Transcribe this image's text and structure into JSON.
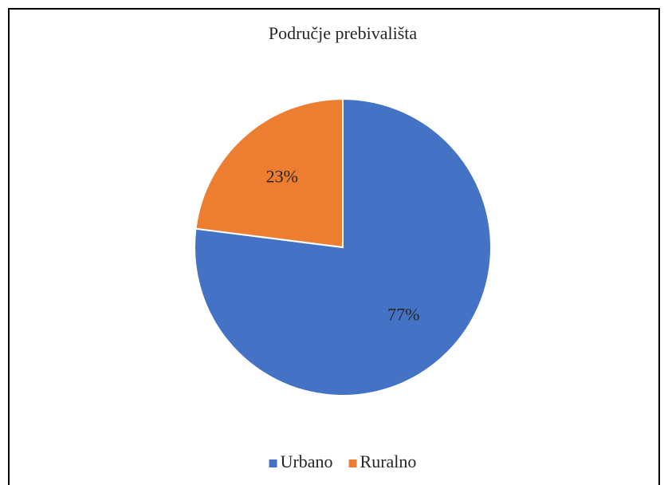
{
  "chart_data": {
    "type": "pie",
    "title": "Područje prebivališta",
    "categories": [
      "Urbano",
      "Ruralno"
    ],
    "values": [
      77,
      23
    ],
    "value_labels": [
      "77%",
      "23%"
    ],
    "colors": [
      "#4472c4",
      "#ed7d31"
    ],
    "legend": "bottom"
  }
}
